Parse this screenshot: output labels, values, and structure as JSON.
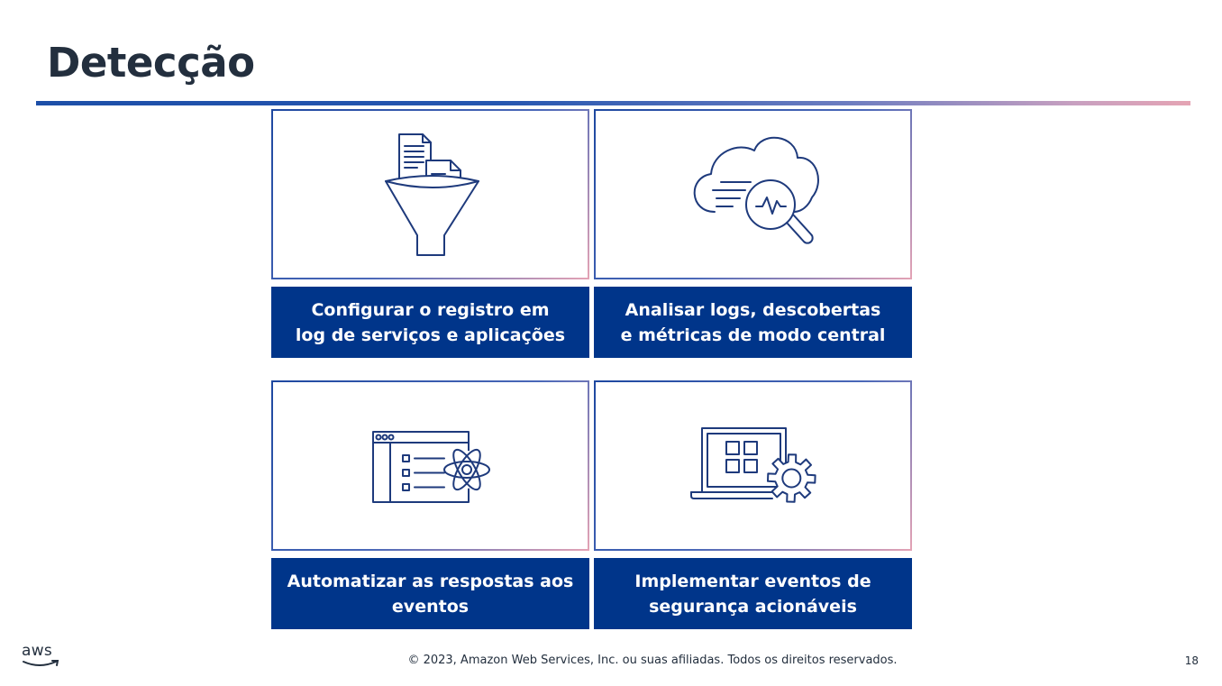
{
  "slide": {
    "title": "Detecção",
    "cards": [
      {
        "icon": "funnel-documents-icon",
        "label": "Configurar o registro em\nlog de serviços e aplicações"
      },
      {
        "icon": "cloud-magnifier-icon",
        "label": "Analisar logs, descobertas\ne métricas de modo central"
      },
      {
        "icon": "browser-automation-icon",
        "label": "Automatizar as respostas aos\neventos"
      },
      {
        "icon": "laptop-gear-icon",
        "label": "Implementar eventos de\nsegurança acionáveis"
      }
    ],
    "footer": {
      "logo_text": "aws",
      "copyright": "© 2023, Amazon Web Services, Inc. ou suas afiliadas. Todos os direitos reservados.",
      "page_number": "18"
    }
  },
  "colors": {
    "title": "#232f3e",
    "label_background": "#00358a",
    "icon_stroke": "#1e3a7c",
    "accent_start": "#1d4fa8",
    "accent_end": "#e5a4b4"
  }
}
